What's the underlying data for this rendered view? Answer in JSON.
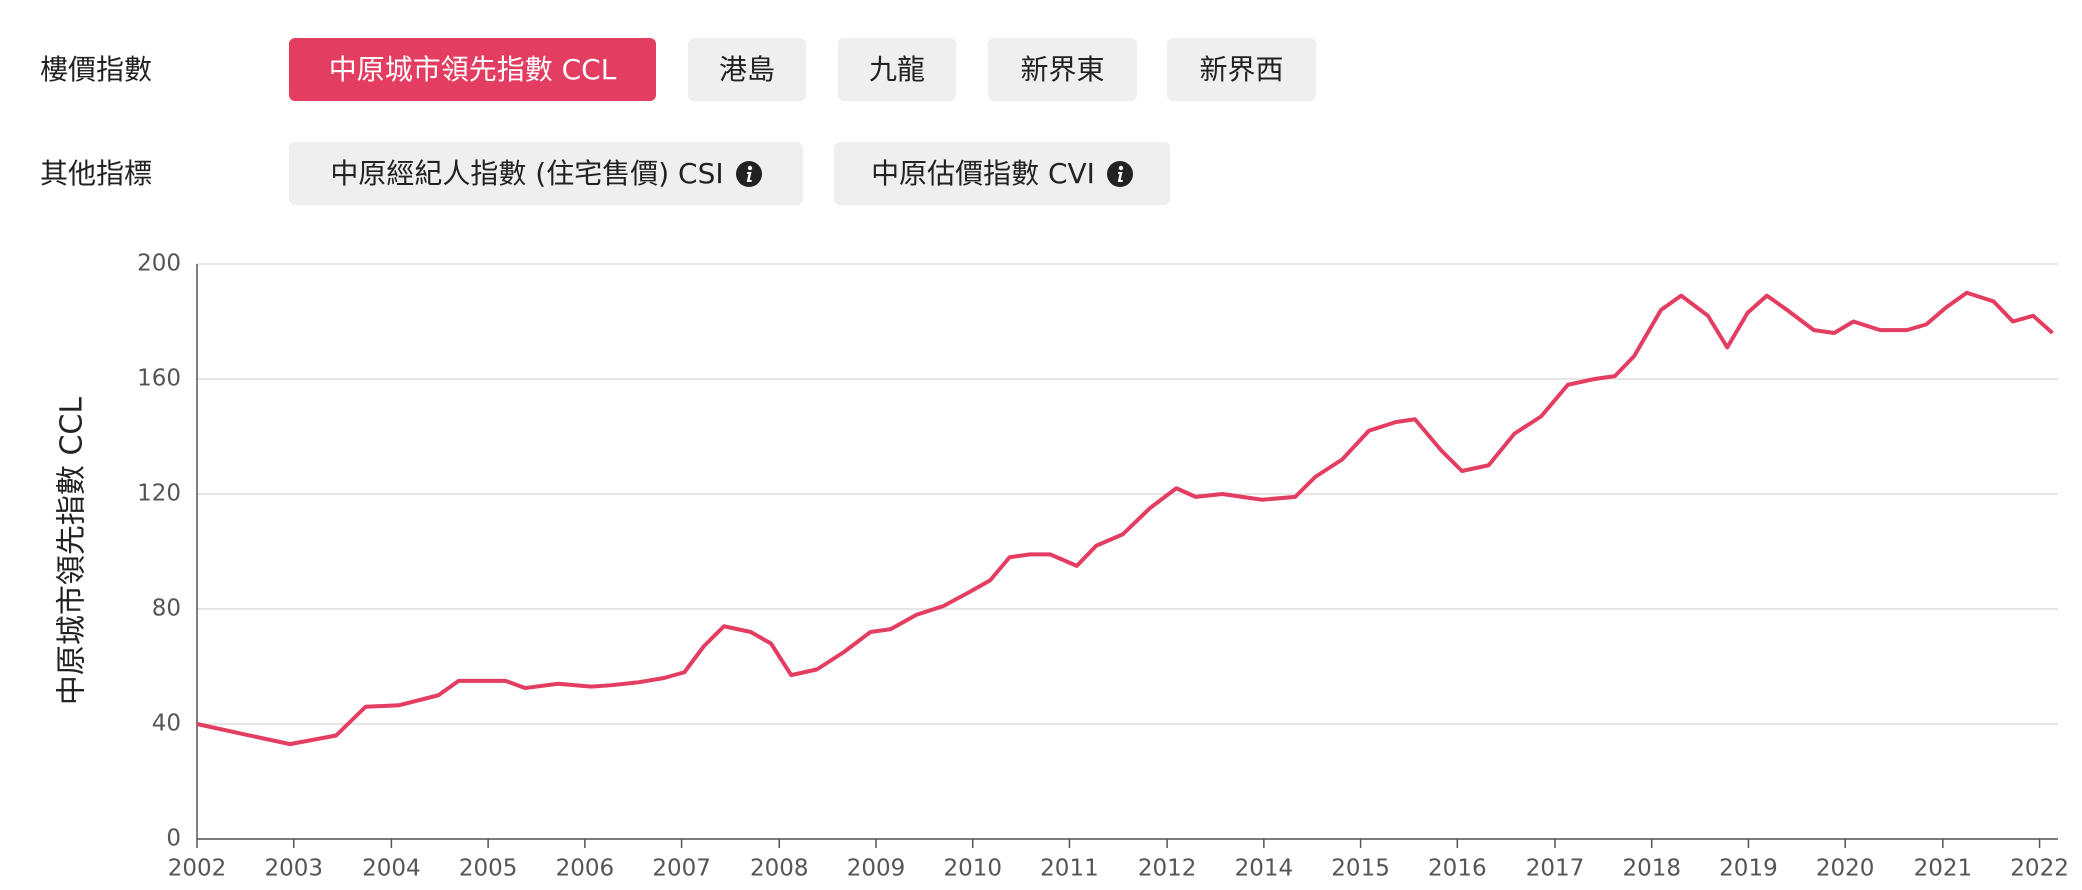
{
  "filters": {
    "label": "樓價指數",
    "buttons": [
      "中原城市領先指數 CCL",
      "港島",
      "九龍",
      "新界東",
      "新界西"
    ]
  },
  "indicators": {
    "label": "其他指標",
    "buttons": [
      "中原經紀人指數 (住宅售價) CSI",
      "中原估價指數 CVI"
    ]
  },
  "chart_data": {
    "type": "line",
    "y_label": "中原城市領先指數 CCL",
    "color": "#e33d61",
    "grid": true,
    "xlim": [
      2002,
      2022.2
    ],
    "ylim": [
      0,
      200
    ],
    "yticks": [
      0,
      40,
      80,
      120,
      160,
      200
    ],
    "xticks": [
      2002,
      {
        "value": 2003.05,
        "label": "2003"
      },
      {
        "value": 2004.11,
        "label": "2004"
      },
      {
        "value": 2005.16,
        "label": "2005"
      },
      {
        "value": 2006.21,
        "label": "2006"
      },
      {
        "value": 2007.26,
        "label": "2007"
      },
      {
        "value": 2008.32,
        "label": "2008"
      },
      {
        "value": 2009.37,
        "label": "2009"
      },
      {
        "value": 2010.42,
        "label": "2010"
      },
      {
        "value": 2011.47,
        "label": "2011"
      },
      {
        "value": 2012.53,
        "label": "2012"
      },
      {
        "value": 2013.58,
        "label": "2014"
      },
      {
        "value": 2014.63,
        "label": "2015"
      },
      {
        "value": 2015.68,
        "label": "2016"
      },
      {
        "value": 2016.74,
        "label": "2017"
      },
      {
        "value": 2017.79,
        "label": "2018"
      },
      {
        "value": 2018.84,
        "label": "2019"
      },
      {
        "value": 2019.89,
        "label": "2020"
      },
      {
        "value": 2020.95,
        "label": "2021"
      },
      {
        "value": 2022.0,
        "label": "2022"
      }
    ],
    "x": [
      2002.0,
      2002.5,
      2003.01,
      2003.51,
      2003.83,
      2004.19,
      2004.62,
      2004.84,
      2005.35,
      2005.56,
      2005.92,
      2006.28,
      2006.5,
      2006.79,
      2007.07,
      2007.29,
      2007.5,
      2007.72,
      2008.01,
      2008.23,
      2008.45,
      2008.73,
      2009.02,
      2009.31,
      2009.53,
      2009.81,
      2010.1,
      2010.39,
      2010.61,
      2010.82,
      2011.04,
      2011.26,
      2011.55,
      2011.76,
      2012.05,
      2012.34,
      2012.63,
      2012.84,
      2013.13,
      2013.56,
      2013.92,
      2014.14,
      2014.43,
      2014.72,
      2015.01,
      2015.22,
      2015.51,
      2015.73,
      2016.02,
      2016.3,
      2016.59,
      2016.88,
      2017.17,
      2017.39,
      2017.6,
      2017.89,
      2018.11,
      2018.4,
      2018.61,
      2018.83,
      2019.04,
      2019.26,
      2019.55,
      2019.77,
      2019.98,
      2020.27,
      2020.56,
      2020.77,
      2020.99,
      2021.21,
      2021.5,
      2021.71,
      2021.93,
      2022.14
    ],
    "values": [
      40,
      36.5,
      33,
      36,
      46,
      46.5,
      50,
      55,
      55,
      52.5,
      54,
      53,
      53.5,
      54.5,
      56,
      58,
      67,
      74,
      72,
      68,
      57,
      59,
      65,
      72,
      73,
      78,
      81,
      86,
      90,
      98,
      99,
      99,
      95,
      102,
      106,
      115,
      122,
      119,
      120,
      118,
      119,
      126,
      132,
      142,
      145,
      146,
      135,
      128,
      130,
      141,
      147,
      158,
      160,
      161,
      168,
      184,
      189,
      182,
      171,
      183,
      189,
      184,
      177,
      176,
      180,
      177,
      177,
      179,
      185,
      190,
      187,
      180,
      182,
      176
    ]
  }
}
